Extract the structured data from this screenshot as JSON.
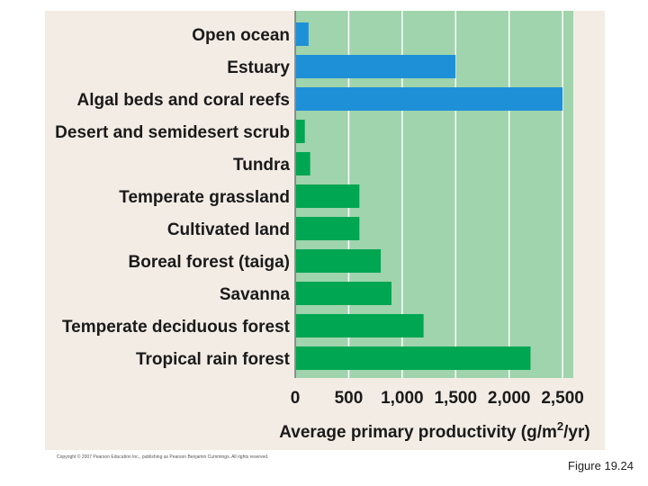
{
  "chart_data": {
    "type": "bar",
    "orientation": "horizontal",
    "categories": [
      "Open ocean",
      "Estuary",
      "Algal beds and coral reefs",
      "Desert and semidesert scrub",
      "Tundra",
      "Temperate grassland",
      "Cultivated land",
      "Boreal forest (taiga)",
      "Savanna",
      "Temperate deciduous forest",
      "Tropical rain forest"
    ],
    "values": [
      125,
      1500,
      2500,
      90,
      140,
      600,
      600,
      800,
      900,
      1200,
      2200
    ],
    "groups": [
      "aquatic",
      "aquatic",
      "aquatic",
      "terrestrial",
      "terrestrial",
      "terrestrial",
      "terrestrial",
      "terrestrial",
      "terrestrial",
      "terrestrial",
      "terrestrial"
    ],
    "xticks": [
      0,
      500,
      1000,
      1500,
      2000,
      2500
    ],
    "xtick_labels": [
      "0",
      "500",
      "1,000",
      "1,500",
      "2,000",
      "2,500"
    ],
    "xlim": [
      0,
      2600
    ],
    "xlabel_main": "Average primary productivity (g/m",
    "xlabel_sup": "2",
    "xlabel_end": "/yr)",
    "grid": true
  },
  "colors": {
    "aquatic": "#1e90d8",
    "terrestrial": "#00a651",
    "plot_bg": "#9fd4ad",
    "panel_bg": "#f3ece4",
    "gridline": "#ffffff"
  },
  "copyright": "Copyright © 2007 Pearson Education Inc., publishing as Pearson Benjamin Cummings. All rights reserved.",
  "caption": "Figure 19.24"
}
